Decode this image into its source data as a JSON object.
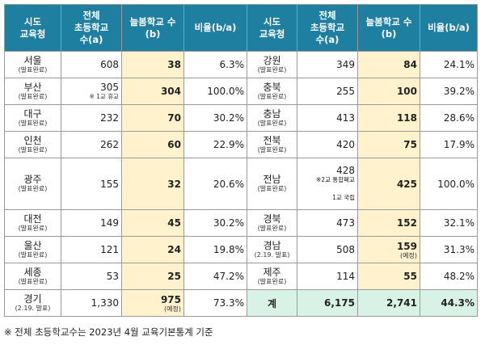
{
  "headers": {
    "region": [
      "시도",
      "교육청"
    ],
    "total": [
      "전체",
      "초등학교",
      "수(a)"
    ],
    "neulbom": [
      "늘봄학교 수",
      "(b)"
    ],
    "ratio": "비율(b/a)"
  },
  "left_rows": [
    {
      "name": "서울",
      "status": "(발표완료)",
      "total": "608",
      "total_note": "",
      "count": "38",
      "count_note": "",
      "ratio": "6.3%"
    },
    {
      "name": "부산",
      "status": "(발표완료)",
      "total": "305",
      "total_note": "※ 1교 휴교",
      "count": "304",
      "count_note": "",
      "ratio": "100.0%"
    },
    {
      "name": "대구",
      "status": "(발표완료)",
      "total": "232",
      "total_note": "",
      "count": "70",
      "count_note": "",
      "ratio": "30.2%"
    },
    {
      "name": "인천",
      "status": "(발표완료)",
      "total": "262",
      "total_note": "",
      "count": "60",
      "count_note": "",
      "ratio": "22.9%"
    },
    {
      "name": "광주",
      "status": "(발표완료)",
      "total": "155",
      "total_note": "",
      "count": "32",
      "count_note": "",
      "ratio": "20.6%"
    },
    {
      "name": "대전",
      "status": "(발표완료)",
      "total": "149",
      "total_note": "",
      "count": "45",
      "count_note": "",
      "ratio": "30.2%"
    },
    {
      "name": "울산",
      "status": "(발표완료)",
      "total": "121",
      "total_note": "",
      "count": "24",
      "count_note": "",
      "ratio": "19.8%"
    },
    {
      "name": "세종",
      "status": "(발표완료)",
      "total": "53",
      "total_note": "",
      "count": "25",
      "count_note": "",
      "ratio": "47.2%"
    },
    {
      "name": "경기",
      "status": "(2.19. 발표)",
      "total": "1,330",
      "total_note": "",
      "count": "975",
      "count_note": "(예정)",
      "ratio": "73.3%"
    }
  ],
  "right_rows": [
    {
      "name": "강원",
      "status": "(발표완료)",
      "total": "349",
      "count": "84",
      "count_note": "",
      "ratio": "24.1%"
    },
    {
      "name": "충북",
      "status": "(발표완료)",
      "total": "255",
      "count": "100",
      "count_note": "",
      "ratio": "39.2%"
    },
    {
      "name": "충남",
      "status": "(발표완료)",
      "total": "413",
      "count": "118",
      "count_note": "",
      "ratio": "28.6%"
    },
    {
      "name": "전북",
      "status": "(발표완료)",
      "total": "420",
      "count": "75",
      "count_note": "",
      "ratio": "17.9%"
    },
    {
      "name": "전남",
      "status": "(발표완료)",
      "total": "428",
      "total_note": "※2교 통합폐교",
      "total_note2": "1교 국립",
      "count": "425",
      "count_note": "",
      "ratio": "100.0%"
    },
    {
      "name": "경북",
      "status": "(발표완료)",
      "total": "473",
      "count": "152",
      "count_note": "",
      "ratio": "32.1%"
    },
    {
      "name": "경남",
      "status": "(2.19. 발표)",
      "total": "508",
      "count": "159",
      "count_note": "(예정)",
      "ratio": "31.3%"
    },
    {
      "name": "제주",
      "status": "(발표완료)",
      "total": "114",
      "count": "55",
      "count_note": "",
      "ratio": "48.2%"
    }
  ],
  "total_row": {
    "label": "계",
    "total": "6,175",
    "count": "2,741",
    "ratio": "44.3%"
  },
  "footnote": "※ 전체 초등학교수는 2023년 4월 교육기본통계 기준",
  "colors": {
    "header_bg": "#1f7fa0",
    "highlight": "#fff2cc",
    "total_bg": "#d9f2e6"
  }
}
